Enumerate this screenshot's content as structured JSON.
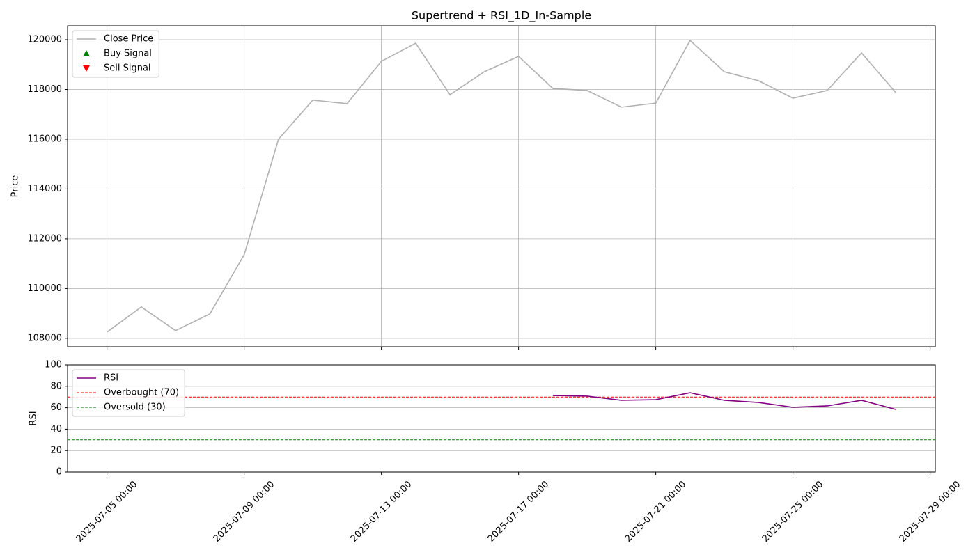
{
  "chart_data": [
    {
      "type": "line",
      "title": "Supertrend + RSI_1D_In-Sample",
      "ylabel": "Price",
      "x": [
        "2025-07-05 00:00",
        "2025-07-06 00:00",
        "2025-07-07 00:00",
        "2025-07-08 00:00",
        "2025-07-09 00:00",
        "2025-07-10 00:00",
        "2025-07-11 00:00",
        "2025-07-12 00:00",
        "2025-07-13 00:00",
        "2025-07-14 00:00",
        "2025-07-15 00:00",
        "2025-07-16 00:00",
        "2025-07-17 00:00",
        "2025-07-18 00:00",
        "2025-07-19 00:00",
        "2025-07-20 00:00",
        "2025-07-21 00:00",
        "2025-07-22 00:00",
        "2025-07-23 00:00",
        "2025-07-24 00:00",
        "2025-07-25 00:00",
        "2025-07-26 00:00",
        "2025-07-27 00:00",
        "2025-07-28 00:00"
      ],
      "series": [
        {
          "name": "Close Price",
          "color": "#b0b0b0",
          "values": [
            108250,
            109260,
            108310,
            108980,
            111360,
            116000,
            117570,
            117430,
            119130,
            119860,
            117790,
            118710,
            119330,
            118040,
            117960,
            117290,
            117450,
            119970,
            118710,
            118350,
            117650,
            117960,
            119470,
            117870
          ]
        },
        {
          "name": "Buy Signal",
          "color": "green",
          "marker": "triangle-up",
          "values": [
            null,
            null,
            null,
            null,
            null,
            null,
            null,
            null,
            null,
            null,
            null,
            null,
            null,
            null,
            null,
            null,
            null,
            null,
            null,
            null,
            null,
            null,
            null,
            null
          ]
        },
        {
          "name": "Sell Signal",
          "color": "red",
          "marker": "triangle-down",
          "values": [
            null,
            null,
            null,
            null,
            null,
            null,
            null,
            null,
            null,
            null,
            null,
            null,
            null,
            null,
            null,
            null,
            null,
            null,
            null,
            null,
            null,
            null,
            null,
            null
          ]
        }
      ],
      "xlim": [
        "2025-07-03 20:24",
        "2025-07-29 03:36"
      ],
      "xticks": [
        "2025-07-05 00:00",
        "2025-07-09 00:00",
        "2025-07-13 00:00",
        "2025-07-17 00:00",
        "2025-07-21 00:00",
        "2025-07-25 00:00",
        "2025-07-29 00:00"
      ],
      "xtick_labels": false,
      "ylim": [
        107660,
        120560
      ],
      "yticks": [
        108000,
        110000,
        112000,
        114000,
        116000,
        118000,
        120000
      ],
      "grid": "both",
      "legend": "upper left"
    },
    {
      "type": "line",
      "ylabel": "RSI",
      "x": [
        "2025-07-05 00:00",
        "2025-07-06 00:00",
        "2025-07-07 00:00",
        "2025-07-08 00:00",
        "2025-07-09 00:00",
        "2025-07-10 00:00",
        "2025-07-11 00:00",
        "2025-07-12 00:00",
        "2025-07-13 00:00",
        "2025-07-14 00:00",
        "2025-07-15 00:00",
        "2025-07-16 00:00",
        "2025-07-17 00:00",
        "2025-07-18 00:00",
        "2025-07-19 00:00",
        "2025-07-20 00:00",
        "2025-07-21 00:00",
        "2025-07-22 00:00",
        "2025-07-23 00:00",
        "2025-07-24 00:00",
        "2025-07-25 00:00",
        "2025-07-26 00:00",
        "2025-07-27 00:00",
        "2025-07-28 00:00"
      ],
      "series": [
        {
          "name": "RSI",
          "color": "purple",
          "values": [
            null,
            null,
            null,
            null,
            null,
            null,
            null,
            null,
            null,
            null,
            null,
            null,
            null,
            71.4,
            70.8,
            66.9,
            67.5,
            74.0,
            66.9,
            64.9,
            60.4,
            61.7,
            66.9,
            58.4
          ]
        }
      ],
      "reference_lines": [
        {
          "name": "Overbought (70)",
          "value": 70,
          "color": "red"
        },
        {
          "name": "Oversold (30)",
          "value": 30,
          "color": "green"
        }
      ],
      "xlim": [
        "2025-07-03 20:24",
        "2025-07-29 03:36"
      ],
      "xticks": [
        "2025-07-05 00:00",
        "2025-07-09 00:00",
        "2025-07-13 00:00",
        "2025-07-17 00:00",
        "2025-07-21 00:00",
        "2025-07-25 00:00",
        "2025-07-29 00:00"
      ],
      "xtick_labels": true,
      "ylim": [
        0,
        100
      ],
      "yticks": [
        0,
        20,
        40,
        60,
        80,
        100
      ],
      "grid": "y",
      "legend": "upper left"
    }
  ]
}
